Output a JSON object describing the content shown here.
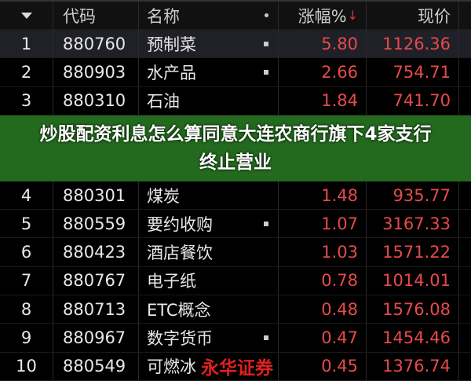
{
  "header": {
    "num_icon": "sort-triangle-icon",
    "code": "代码",
    "name": "名称",
    "pct": "涨幅%",
    "pct_sort": "↓",
    "price": "现价"
  },
  "rows": [
    {
      "n": "1",
      "code": "880760",
      "name": "预制菜",
      "pct": "5.80",
      "price": "1126.36",
      "dot": true
    },
    {
      "n": "2",
      "code": "880903",
      "name": "水产品",
      "pct": "2.66",
      "price": "754.71",
      "dot": true
    },
    {
      "n": "3",
      "code": "880310",
      "name": "石油",
      "pct": "1.84",
      "price": "741.70",
      "dot": false
    },
    {
      "n": "4",
      "code": "880301",
      "name": "煤炭",
      "pct": "1.48",
      "price": "935.77",
      "dot": false
    },
    {
      "n": "5",
      "code": "880559",
      "name": "要约收购",
      "pct": "1.07",
      "price": "3167.33",
      "dot": true
    },
    {
      "n": "6",
      "code": "880423",
      "name": "酒店餐饮",
      "pct": "1.03",
      "price": "1571.22",
      "dot": false
    },
    {
      "n": "7",
      "code": "880767",
      "name": "电子纸",
      "pct": "0.78",
      "price": "1014.01",
      "dot": false
    },
    {
      "n": "8",
      "code": "880713",
      "name": "ETC概念",
      "pct": "0.48",
      "price": "1576.08",
      "dot": false
    },
    {
      "n": "9",
      "code": "880967",
      "name": "数字货币",
      "pct": "0.47",
      "price": "1454.46",
      "dot": true
    },
    {
      "n": "10",
      "code": "880549",
      "name": "可燃冰",
      "pct": "0.45",
      "price": "1376.74",
      "dot": false
    }
  ],
  "banner": {
    "line1": "炒股配资利息怎么算同意大连农商行旗下4家支行",
    "line2": "终止营业"
  },
  "watermark": "永华证券",
  "colors": {
    "up": "#e84a4a",
    "banner": "#23691e"
  }
}
